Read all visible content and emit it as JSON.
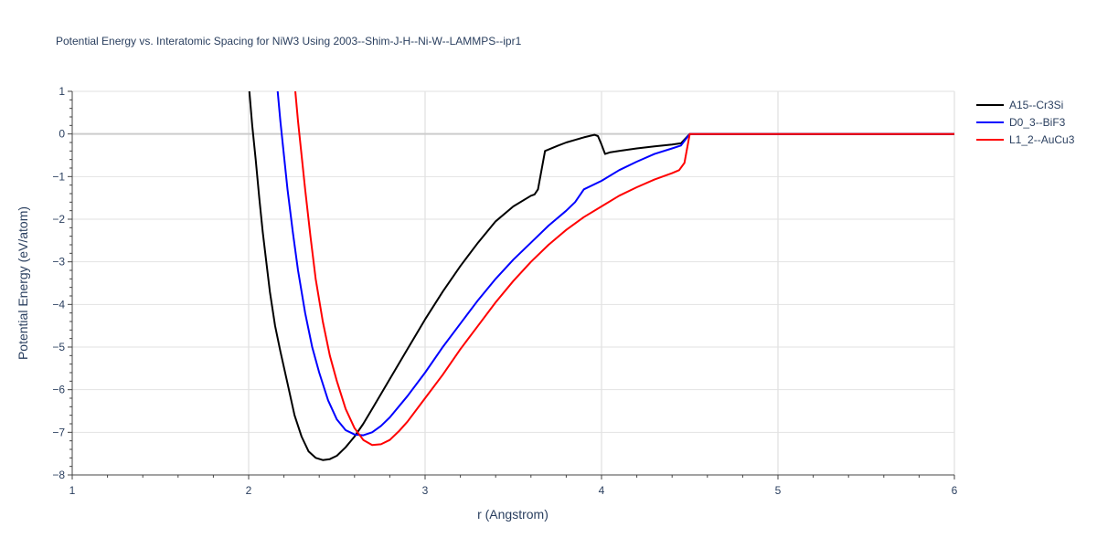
{
  "chart_data": {
    "type": "line",
    "title": "Potential Energy vs. Interatomic Spacing for NiW3 Using 2003--Shim-J-H--Ni-W--LAMMPS--ipr1",
    "xlabel": "r (Angstrom)",
    "ylabel": "Potential Energy (eV/atom)",
    "xlim": [
      1,
      6
    ],
    "ylim": [
      -8,
      1
    ],
    "xticks": [
      1,
      2,
      3,
      4,
      5,
      6
    ],
    "yticks": [
      1,
      0,
      -1,
      -2,
      -3,
      -4,
      -5,
      -6,
      -7,
      -8
    ],
    "xtick_labels": [
      "1",
      "2",
      "3",
      "4",
      "5",
      "6"
    ],
    "ytick_labels": [
      "1",
      "0",
      "−1",
      "−2",
      "−3",
      "−4",
      "−5",
      "−6",
      "−7",
      "−8"
    ],
    "grid": true,
    "legend_position": "top-right",
    "series": [
      {
        "name": "A15--Cr3Si",
        "color": "#000000",
        "x": [
          2.0,
          2.02,
          2.04,
          2.06,
          2.08,
          2.1,
          2.12,
          2.15,
          2.18,
          2.22,
          2.26,
          2.3,
          2.34,
          2.38,
          2.42,
          2.46,
          2.5,
          2.55,
          2.6,
          2.65,
          2.7,
          2.8,
          2.9,
          3.0,
          3.1,
          3.2,
          3.3,
          3.4,
          3.5,
          3.6,
          3.62,
          3.64,
          3.68,
          3.75,
          3.8,
          3.85,
          3.9,
          3.94,
          3.96,
          3.98,
          4.0,
          4.02,
          4.05,
          4.1,
          4.2,
          4.3,
          4.4,
          4.45,
          4.5,
          4.6,
          4.8,
          5.0,
          5.5,
          6.0
        ],
        "y": [
          1.2,
          0.2,
          -0.6,
          -1.5,
          -2.3,
          -3.0,
          -3.7,
          -4.5,
          -5.1,
          -5.85,
          -6.6,
          -7.1,
          -7.45,
          -7.6,
          -7.65,
          -7.63,
          -7.55,
          -7.35,
          -7.1,
          -6.8,
          -6.45,
          -5.75,
          -5.05,
          -4.35,
          -3.7,
          -3.1,
          -2.55,
          -2.05,
          -1.7,
          -1.45,
          -1.42,
          -1.3,
          -0.4,
          -0.28,
          -0.2,
          -0.14,
          -0.08,
          -0.04,
          -0.02,
          -0.05,
          -0.25,
          -0.47,
          -0.43,
          -0.4,
          -0.34,
          -0.29,
          -0.25,
          -0.22,
          0.0,
          0.0,
          0.0,
          0.0,
          0.0,
          0.0
        ]
      },
      {
        "name": "D0_3--BiF3",
        "color": "#0000ff",
        "x": [
          2.16,
          2.18,
          2.2,
          2.22,
          2.25,
          2.28,
          2.32,
          2.36,
          2.4,
          2.45,
          2.5,
          2.55,
          2.6,
          2.65,
          2.7,
          2.75,
          2.8,
          2.9,
          3.0,
          3.1,
          3.2,
          3.3,
          3.4,
          3.5,
          3.6,
          3.7,
          3.8,
          3.85,
          3.9,
          4.0,
          4.1,
          4.2,
          4.3,
          4.4,
          4.45,
          4.5,
          4.6,
          4.8,
          5.0,
          5.5,
          6.0
        ],
        "y": [
          1.2,
          0.3,
          -0.5,
          -1.3,
          -2.3,
          -3.2,
          -4.2,
          -5.0,
          -5.6,
          -6.25,
          -6.7,
          -6.95,
          -7.05,
          -7.07,
          -7.0,
          -6.85,
          -6.65,
          -6.15,
          -5.6,
          -5.0,
          -4.45,
          -3.9,
          -3.4,
          -2.95,
          -2.55,
          -2.15,
          -1.8,
          -1.6,
          -1.3,
          -1.1,
          -0.85,
          -0.65,
          -0.47,
          -0.34,
          -0.27,
          0.0,
          0.0,
          0.0,
          0.0,
          0.0,
          0.0
        ]
      },
      {
        "name": "L1_2--AuCu3",
        "color": "#ff0000",
        "x": [
          2.26,
          2.28,
          2.3,
          2.32,
          2.35,
          2.38,
          2.42,
          2.46,
          2.5,
          2.55,
          2.6,
          2.65,
          2.7,
          2.75,
          2.8,
          2.85,
          2.9,
          3.0,
          3.1,
          3.2,
          3.3,
          3.4,
          3.5,
          3.6,
          3.7,
          3.8,
          3.9,
          4.0,
          4.1,
          4.2,
          4.3,
          4.4,
          4.44,
          4.47,
          4.5,
          4.6,
          4.8,
          5.0,
          5.5,
          6.0
        ],
        "y": [
          1.2,
          0.3,
          -0.5,
          -1.3,
          -2.4,
          -3.4,
          -4.4,
          -5.2,
          -5.8,
          -6.45,
          -6.9,
          -7.18,
          -7.3,
          -7.28,
          -7.18,
          -6.98,
          -6.75,
          -6.2,
          -5.65,
          -5.05,
          -4.5,
          -3.95,
          -3.45,
          -3.0,
          -2.6,
          -2.25,
          -1.95,
          -1.7,
          -1.45,
          -1.25,
          -1.07,
          -0.92,
          -0.85,
          -0.68,
          0.0,
          0.0,
          0.0,
          0.0,
          0.0,
          0.0
        ]
      }
    ]
  }
}
